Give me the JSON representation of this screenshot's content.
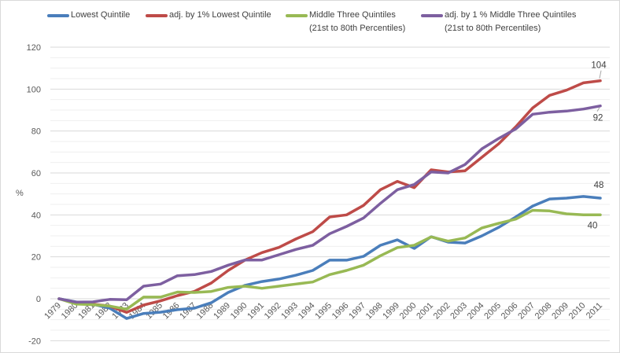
{
  "chart_data": {
    "type": "line",
    "title": "",
    "xlabel": "",
    "ylabel": "%",
    "ylim": [
      -20,
      120
    ],
    "yticks": [
      -20,
      0,
      20,
      40,
      60,
      80,
      100,
      120
    ],
    "ytick_labels": [
      "-20",
      "0",
      "20",
      "40",
      "60",
      "80",
      "100",
      "120"
    ],
    "minor_grid_step": 5,
    "grid": true,
    "legend_position": "top",
    "x": [
      "1979",
      "1980",
      "1981",
      "1982",
      "1983",
      "1984",
      "1985",
      "1986",
      "1987",
      "1988",
      "1989",
      "1990",
      "1991",
      "1992",
      "1993",
      "1994",
      "1995",
      "1996",
      "1997",
      "1998",
      "1999",
      "2000",
      "2001",
      "2002",
      "2003",
      "2004",
      "2005",
      "2006",
      "2007",
      "2008",
      "2009",
      "2010",
      "2011"
    ],
    "series": [
      {
        "name": "Lowest Quintile",
        "legend_lines": [
          "Lowest Quintile"
        ],
        "color": "#4a7ebb",
        "values": [
          0,
          -1.5,
          -2.6,
          -4.5,
          -9.4,
          -7,
          -6.4,
          -5.2,
          -4.5,
          -1.9,
          3,
          6.4,
          8.2,
          9.4,
          11.2,
          13.5,
          18.4,
          18.4,
          20.2,
          25.5,
          28.1,
          24,
          29.6,
          27,
          26.6,
          30,
          34.1,
          39,
          44.2,
          47.6,
          48,
          48.8,
          48
        ],
        "end_label": "48"
      },
      {
        "name": "adj. by 1% Lowest Quintile",
        "legend_lines": [
          "adj. by 1% Lowest Quintile"
        ],
        "color": "#be4b48",
        "values": [
          0,
          -2,
          -2.6,
          -3.5,
          -6.5,
          -3,
          -1,
          1.5,
          3.5,
          7.5,
          13.5,
          18.5,
          22,
          24.5,
          28.5,
          32,
          39,
          40,
          44.5,
          52,
          56,
          53,
          61.5,
          60.5,
          61,
          67.5,
          74,
          82,
          91,
          97,
          99.5,
          103,
          104
        ],
        "end_label": "104"
      },
      {
        "name": "Middle Three Quintiles (21st to 80th Percentiles)",
        "legend_lines": [
          "Middle Three Quintiles",
          "(21st to 80th Percentiles)"
        ],
        "color": "#98b954",
        "values": [
          0,
          -2.5,
          -2.8,
          -3.5,
          -5,
          0.8,
          0.8,
          3.2,
          3,
          3.5,
          5.4,
          6,
          5,
          6,
          7,
          8,
          11.5,
          13.5,
          16,
          20.5,
          24.4,
          25.5,
          29.5,
          27.5,
          29,
          33.8,
          36,
          38,
          42.2,
          41.9,
          40.5,
          40,
          40
        ],
        "end_label": "40"
      },
      {
        "name": "adj. by 1 % Middle Three Quintiles (21st to 80th Percentiles)",
        "legend_lines": [
          "adj. by 1 % Middle Three Quintiles",
          "(21st to 80th Percentiles)"
        ],
        "color": "#7d5fa0",
        "values": [
          0,
          -1.6,
          -1.5,
          -0.3,
          -0.5,
          6,
          7,
          11,
          11.5,
          13,
          16,
          18.5,
          18.5,
          21,
          23.5,
          25.5,
          31,
          34.5,
          38.5,
          45.5,
          52,
          54.5,
          60.5,
          60,
          64,
          71.5,
          76.5,
          81,
          88,
          89,
          89.5,
          90.5,
          92
        ],
        "end_label": "92"
      }
    ]
  }
}
